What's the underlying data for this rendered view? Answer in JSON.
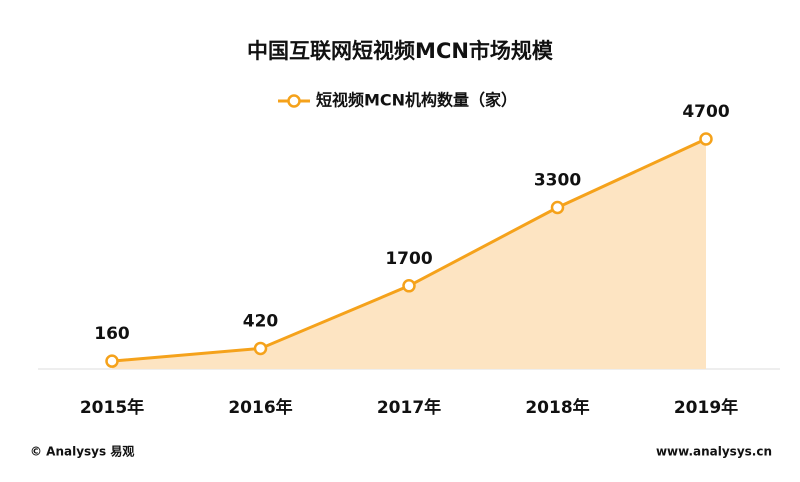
{
  "chart_data": {
    "type": "area",
    "title": "中国互联网短视频MCN市场规模",
    "categories": [
      "2015年",
      "2016年",
      "2017年",
      "2018年",
      "2019年"
    ],
    "series": [
      {
        "name": "短视频MCN机构数量（家）",
        "color": "#f5a21b",
        "fill": "#fde4c2",
        "values": [
          160,
          420,
          1700,
          3300,
          4700
        ]
      }
    ],
    "data_labels": true,
    "legend": "top",
    "source": "© Analysys 易观",
    "website": "www.analysys.cn"
  }
}
